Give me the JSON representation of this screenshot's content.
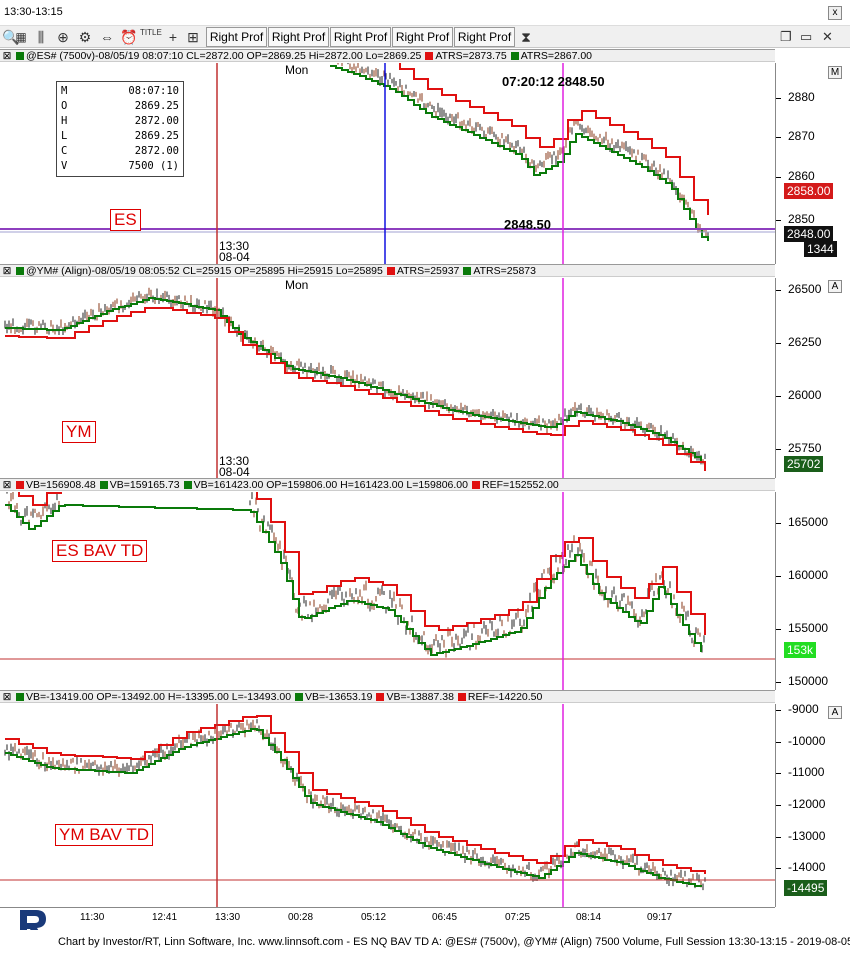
{
  "window": {
    "title": "13:30-13:15",
    "close_label": "x"
  },
  "toolbar": {
    "buttons": [
      "Right Prof",
      "Right Prof",
      "Right Prof",
      "Right Prof",
      "Right Prof"
    ],
    "icons": [
      "zoom-icon",
      "bars-icon",
      "magnifier-icon",
      "gear-icon",
      "crossbar-icon",
      "alarm-icon",
      "title-icon",
      "crosshair-icon",
      "ruler-icon",
      "hourglass-icon"
    ],
    "title_icon_text": "TITLE",
    "window_buttons": [
      "restore-icon",
      "close-icon"
    ]
  },
  "panes": [
    {
      "id": "es",
      "header": "@ES# (7500v)-08/05/19 08:07:10 CL=2872.00 OP=2869.25 Hi=2872.00 Lo=2869.25",
      "atrs": [
        "ATRS=2873.75",
        "ATRS=2867.00"
      ],
      "label": "ES",
      "day": "Mon",
      "scale_btn": "M",
      "ticks": [
        "2880",
        "2870",
        "2860",
        "2850"
      ],
      "tags": [
        {
          "text": "2858.00",
          "color": "#d41a1a"
        },
        {
          "text": "2848.00",
          "color": "#111111"
        },
        {
          "text": "1344",
          "color": "#111111"
        }
      ],
      "cursor_text": "07:20:12  2848.50",
      "level_text": "2848.50",
      "time_label": "13:30",
      "date_label": "08-04",
      "databox": [
        {
          "k": "M",
          "v": "08:07:10"
        },
        {
          "k": "O",
          "v": "2869.25"
        },
        {
          "k": "H",
          "v": "2872.00"
        },
        {
          "k": "L",
          "v": "2869.25"
        },
        {
          "k": "C",
          "v": "2872.00"
        },
        {
          "k": "V",
          "v": "7500 (1)"
        }
      ]
    },
    {
      "id": "ym",
      "header": "@YM# (Align)-08/05/19 08:05:52 CL=25915 OP=25895 Hi=25915 Lo=25895",
      "atrs": [
        "ATRS=25937",
        "ATRS=25873"
      ],
      "label": "YM",
      "day": "Mon",
      "scale_btn": "A",
      "ticks": [
        "26500",
        "26250",
        "26000",
        "25750"
      ],
      "tags": [
        {
          "text": "25702",
          "color": "#1a5e1a"
        }
      ],
      "time_label": "13:30",
      "date_label": "08-04"
    },
    {
      "id": "es-bav",
      "header_items": [
        "VB=156908.48",
        "VB=159165.73",
        "VB=161423.00 OP=159806.00 H=161423.00 L=159806.00",
        "REF=152552.00"
      ],
      "label": "ES BAV TD",
      "scale_btn": "A",
      "ticks": [
        "165000",
        "160000",
        "155000",
        "150000"
      ],
      "tags": [
        {
          "text": "153k",
          "color": "#22cc22"
        }
      ]
    },
    {
      "id": "ym-bav",
      "header_items": [
        "VB=-13419.00 OP=-13492.00 H=-13395.00 L=-13493.00",
        "VB=-13653.19",
        "VB=-13887.38",
        "REF=-14220.50"
      ],
      "label": "YM BAV TD",
      "scale_btn": "A",
      "ticks": [
        "-9000",
        "-10000",
        "-11000",
        "-12000",
        "-13000",
        "-14000"
      ],
      "tags": [
        {
          "text": "-14495",
          "color": "#1a5e1a"
        }
      ]
    }
  ],
  "time_axis": [
    "11:30",
    "12:41",
    "13:30",
    "00:28",
    "05:12",
    "06:45",
    "07:25",
    "08:14",
    "09:17"
  ],
  "footer": "Chart by Investor/RT, Linn Software, Inc. www.linnsoft.com - ES NQ BAV TD A: @ES# (7500v), @YM# (Align) 7500 Volume, Full Session 13:30-13:15 - 2019-08-05",
  "colors": {
    "red": "#e01010",
    "green": "#0a7a0a",
    "magenta": "#e020e0",
    "blue": "#1010e0",
    "refline": "#c03030"
  }
}
